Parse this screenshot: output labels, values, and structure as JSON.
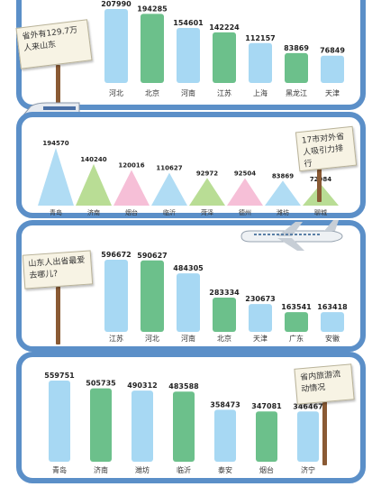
{
  "colors": {
    "light_blue": "#a7d8f3",
    "green": "#6cc08b",
    "pink": "#f5b8d3",
    "light_green": "#b1d98a",
    "frame": "#5b8fc8"
  },
  "signs": {
    "s1": "省外有129.7万人来山东",
    "s2": "17市对外省人吸引力排行",
    "s3": "山东人出省最爱去哪儿?",
    "s4": "省内旅游流动情况"
  },
  "chart_data": [
    {
      "type": "bar",
      "categories": [
        "河北",
        "北京",
        "河南",
        "江苏",
        "上海",
        "黑龙江",
        "天津"
      ],
      "values": [
        207990,
        194285,
        154601,
        142224,
        112157,
        83869,
        76849
      ],
      "bar_colors": [
        "#a7d8f3",
        "#6cc08b",
        "#a7d8f3",
        "#6cc08b",
        "#a7d8f3",
        "#6cc08b",
        "#a7d8f3"
      ],
      "ylim": [
        0,
        207990
      ]
    },
    {
      "type": "area",
      "categories": [
        "青岛",
        "济南",
        "烟台",
        "临沂",
        "菏泽",
        "德州",
        "潍坊",
        "聊城"
      ],
      "values": [
        194570,
        140240,
        120016,
        110627,
        92972,
        92504,
        83869,
        72984
      ],
      "shape_colors": [
        "#a7d8f3",
        "#b1d98a",
        "#f5b8d3",
        "#a7d8f3",
        "#b1d98a",
        "#f5b8d3",
        "#a7d8f3",
        "#b1d98a"
      ],
      "ylim": [
        0,
        194570
      ]
    },
    {
      "type": "bar",
      "categories": [
        "江苏",
        "河北",
        "河南",
        "北京",
        "天津",
        "广东",
        "安徽"
      ],
      "values": [
        596672,
        590627,
        484305,
        283334,
        230673,
        163541,
        163418
      ],
      "bar_colors": [
        "#a7d8f3",
        "#6cc08b",
        "#a7d8f3",
        "#6cc08b",
        "#a7d8f3",
        "#6cc08b",
        "#a7d8f3"
      ],
      "ylim": [
        0,
        596672
      ]
    },
    {
      "type": "bar",
      "categories": [
        "青岛",
        "济南",
        "潍坊",
        "临沂",
        "泰安",
        "烟台",
        "济宁"
      ],
      "values": [
        559751,
        505735,
        490312,
        483588,
        358473,
        347081,
        346467
      ],
      "bar_colors": [
        "#a7d8f3",
        "#6cc08b",
        "#a7d8f3",
        "#6cc08b",
        "#a7d8f3",
        "#6cc08b",
        "#a7d8f3"
      ],
      "ylim": [
        0,
        559751
      ]
    }
  ]
}
